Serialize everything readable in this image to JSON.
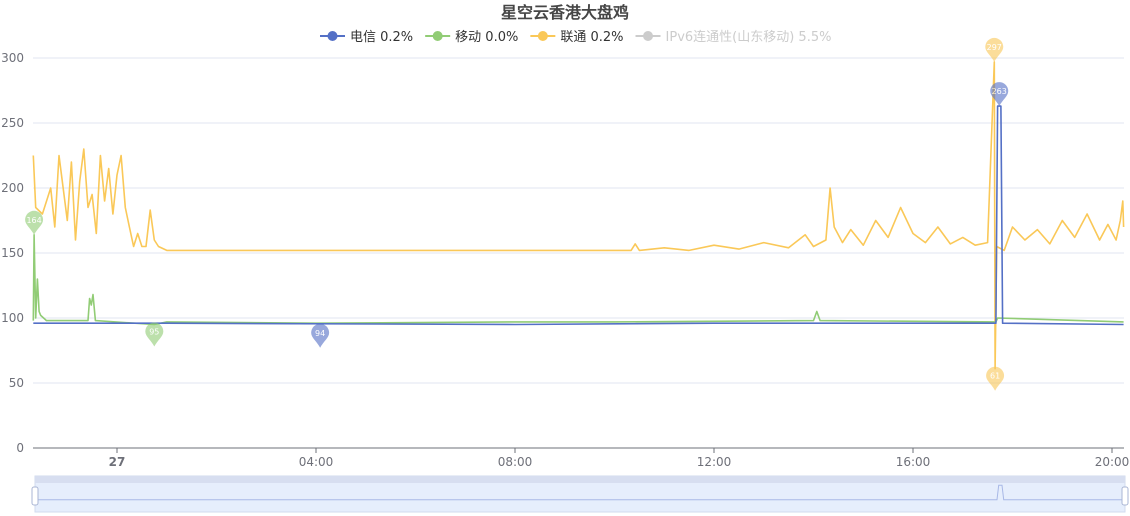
{
  "chart_data": {
    "type": "line",
    "title": "星空云香港大盘鸡",
    "legend": [
      {
        "name": "电信",
        "stat": "0.2%",
        "color": "#5470c6",
        "enabled": true
      },
      {
        "name": "移动",
        "stat": "0.0%",
        "color": "#91cc75",
        "enabled": true
      },
      {
        "name": "联通",
        "stat": "0.2%",
        "color": "#fac858",
        "enabled": true
      },
      {
        "name": "IPv6连通性(山东移动)",
        "stat": "5.5%",
        "color": "#cccccc",
        "enabled": false
      }
    ],
    "legend_position": "top-center",
    "ylim": [
      0,
      300
    ],
    "yticks": [
      0,
      50,
      100,
      150,
      200,
      250,
      300
    ],
    "xticks": [
      {
        "t": "00:00",
        "label": "27",
        "bold": true
      },
      {
        "t": "04:00",
        "label": "04:00"
      },
      {
        "t": "08:00",
        "label": "08:00"
      },
      {
        "t": "12:00",
        "label": "12:00"
      },
      {
        "t": "16:00",
        "label": "16:00"
      },
      {
        "t": "20:00",
        "label": "20:00"
      }
    ],
    "xrange": [
      "22:19",
      "20:14"
    ],
    "grid": "horizontal",
    "series": [
      {
        "name": "电信",
        "color": "#5470c6",
        "points": [
          [
            "22:19",
            96
          ],
          [
            "01:00",
            96
          ],
          [
            "08:00",
            95
          ],
          [
            "12:00",
            96
          ],
          [
            "17:40",
            96
          ],
          [
            "17:42",
            263
          ],
          [
            "17:46",
            263
          ],
          [
            "17:48",
            96
          ],
          [
            "20:14",
            95
          ]
        ],
        "max": {
          "t": "17:44",
          "v": 263
        },
        "min": {
          "t": "04:05",
          "v": 94
        }
      },
      {
        "name": "移动",
        "color": "#91cc75",
        "points": [
          [
            "22:19",
            98
          ],
          [
            "22:20",
            164
          ],
          [
            "22:22",
            100
          ],
          [
            "22:24",
            130
          ],
          [
            "22:26",
            105
          ],
          [
            "22:28",
            102
          ],
          [
            "22:35",
            98
          ],
          [
            "23:25",
            98
          ],
          [
            "23:27",
            115
          ],
          [
            "23:29",
            110
          ],
          [
            "23:31",
            118
          ],
          [
            "23:34",
            98
          ],
          [
            "00:45",
            95
          ],
          [
            "01:00",
            97
          ],
          [
            "04:00",
            96
          ],
          [
            "08:00",
            97
          ],
          [
            "10:00",
            97
          ],
          [
            "14:00",
            98
          ],
          [
            "14:04",
            105
          ],
          [
            "14:08",
            98
          ],
          [
            "17:40",
            97
          ],
          [
            "17:42",
            100
          ],
          [
            "20:14",
            97
          ]
        ],
        "max": {
          "t": "22:20",
          "v": 164
        },
        "min": {
          "t": "00:45",
          "v": 95
        }
      },
      {
        "name": "联通",
        "color": "#fac858",
        "points": [
          [
            "22:19",
            225
          ],
          [
            "22:22",
            185
          ],
          [
            "22:30",
            180
          ],
          [
            "22:40",
            200
          ],
          [
            "22:45",
            170
          ],
          [
            "22:50",
            225
          ],
          [
            "23:00",
            175
          ],
          [
            "23:05",
            220
          ],
          [
            "23:10",
            160
          ],
          [
            "23:15",
            205
          ],
          [
            "23:20",
            230
          ],
          [
            "23:25",
            185
          ],
          [
            "23:30",
            195
          ],
          [
            "23:35",
            165
          ],
          [
            "23:40",
            225
          ],
          [
            "23:45",
            190
          ],
          [
            "23:50",
            215
          ],
          [
            "23:55",
            180
          ],
          [
            "00:00",
            210
          ],
          [
            "00:05",
            225
          ],
          [
            "00:10",
            185
          ],
          [
            "00:15",
            170
          ],
          [
            "00:20",
            155
          ],
          [
            "00:25",
            165
          ],
          [
            "00:30",
            155
          ],
          [
            "00:35",
            155
          ],
          [
            "00:40",
            183
          ],
          [
            "00:45",
            160
          ],
          [
            "00:50",
            155
          ],
          [
            "01:00",
            152
          ],
          [
            "04:00",
            152
          ],
          [
            "08:00",
            152
          ],
          [
            "10:20",
            152
          ],
          [
            "10:25",
            157
          ],
          [
            "10:30",
            152
          ],
          [
            "11:00",
            154
          ],
          [
            "11:30",
            152
          ],
          [
            "12:00",
            156
          ],
          [
            "12:30",
            153
          ],
          [
            "13:00",
            158
          ],
          [
            "13:30",
            154
          ],
          [
            "13:50",
            164
          ],
          [
            "14:00",
            155
          ],
          [
            "14:15",
            160
          ],
          [
            "14:20",
            200
          ],
          [
            "14:25",
            170
          ],
          [
            "14:35",
            158
          ],
          [
            "14:45",
            168
          ],
          [
            "15:00",
            156
          ],
          [
            "15:15",
            175
          ],
          [
            "15:30",
            162
          ],
          [
            "15:45",
            185
          ],
          [
            "16:00",
            165
          ],
          [
            "16:15",
            158
          ],
          [
            "16:30",
            170
          ],
          [
            "16:45",
            157
          ],
          [
            "17:00",
            162
          ],
          [
            "17:15",
            156
          ],
          [
            "17:30",
            158
          ],
          [
            "17:38",
            297
          ],
          [
            "17:39",
            61
          ],
          [
            "17:41",
            155
          ],
          [
            "17:50",
            152
          ],
          [
            "18:00",
            170
          ],
          [
            "18:15",
            160
          ],
          [
            "18:30",
            168
          ],
          [
            "18:45",
            157
          ],
          [
            "19:00",
            175
          ],
          [
            "19:15",
            162
          ],
          [
            "19:30",
            180
          ],
          [
            "19:45",
            160
          ],
          [
            "19:55",
            172
          ],
          [
            "20:05",
            160
          ],
          [
            "20:10",
            175
          ],
          [
            "20:13",
            190
          ],
          [
            "20:14",
            170
          ]
        ],
        "max": {
          "t": "17:38",
          "v": 297
        },
        "min": {
          "t": "17:39",
          "v": 61
        }
      }
    ]
  }
}
